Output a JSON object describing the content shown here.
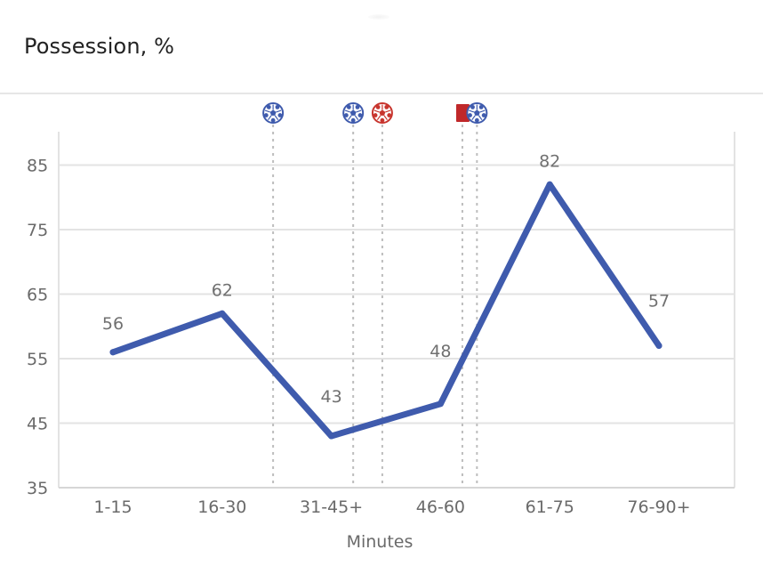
{
  "header": {
    "title": "Possession, %"
  },
  "chart_data": {
    "type": "line",
    "xlabel": "Minutes",
    "ylabel": "",
    "categories": [
      "1-15",
      "16-30",
      "31-45+",
      "46-60",
      "61-75",
      "76-90+"
    ],
    "series": [
      {
        "values": [
          56,
          62,
          43,
          48,
          82,
          57
        ],
        "color": "#3f5bad"
      }
    ],
    "yticks": [
      35,
      45,
      55,
      65,
      75,
      85
    ],
    "ylim": [
      35,
      91
    ],
    "grid": true,
    "events": [
      {
        "type": "goal",
        "minute": 30,
        "team": "blue",
        "icon": "soccer-ball-blue-icon"
      },
      {
        "type": "goal",
        "minute": 41,
        "team": "blue",
        "icon": "soccer-ball-blue-icon"
      },
      {
        "type": "goal",
        "minute": 45,
        "team": "red",
        "icon": "soccer-ball-red-icon"
      },
      {
        "type": "red-card",
        "minute": 56,
        "team": "red",
        "icon": "red-card-icon"
      },
      {
        "type": "goal",
        "minute": 58,
        "team": "blue",
        "icon": "soccer-ball-blue-icon"
      }
    ],
    "colors": {
      "line": "#3f5bad",
      "team_blue": "#3f5bad",
      "team_red": "#c8352e",
      "card_red": "#c0282a",
      "grid": "#e3e3e3",
      "event_line": "#bdbdbd"
    }
  }
}
